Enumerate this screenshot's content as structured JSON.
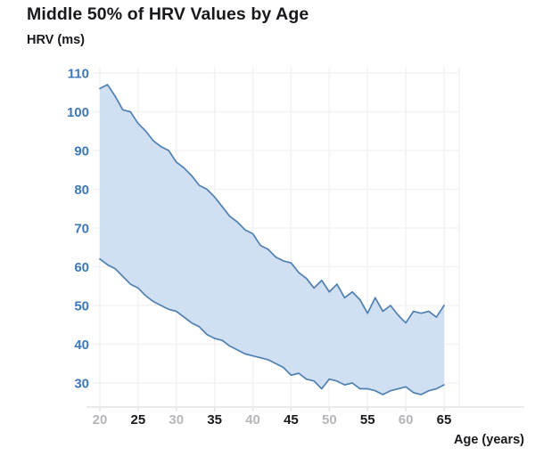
{
  "title": "Middle 50% of HRV Values by Age",
  "y_axis_title": "HRV (ms)",
  "x_axis_title": "Age (years)",
  "chart_data": {
    "type": "area",
    "description": "Shaded band between the 25th and 75th percentile of HRV (ms) by age; band narrows and declines with age with noisy bounds after ~age 46",
    "x": [
      20,
      21,
      22,
      23,
      24,
      25,
      26,
      27,
      28,
      29,
      30,
      31,
      32,
      33,
      34,
      35,
      36,
      37,
      38,
      39,
      40,
      41,
      42,
      43,
      44,
      45,
      46,
      47,
      48,
      49,
      50,
      51,
      52,
      53,
      54,
      55,
      56,
      57,
      58,
      59,
      60,
      61,
      62,
      63,
      64,
      65
    ],
    "series": [
      {
        "name": "upper bound (75th percentile)",
        "values": [
          106,
          107,
          104,
          100.5,
          100,
          97,
          95,
          92.5,
          91,
          90,
          87,
          85.5,
          83.5,
          81,
          80,
          78,
          75.5,
          73,
          71.5,
          69.5,
          68.5,
          65.5,
          64.5,
          62.5,
          61.5,
          61,
          58.5,
          57,
          54.5,
          56.5,
          53.5,
          55.5,
          52,
          53.5,
          51.5,
          48,
          52,
          48.5,
          50,
          47.5,
          45.5,
          48.5,
          48,
          48.5,
          47,
          50
        ]
      },
      {
        "name": "lower bound (25th percentile)",
        "values": [
          62,
          60.5,
          59.5,
          57.5,
          55.5,
          54.5,
          52.5,
          51,
          50,
          49,
          48.5,
          47,
          45.5,
          44.5,
          42.5,
          41.5,
          41,
          39.5,
          38.5,
          37.5,
          37,
          36.5,
          36,
          35,
          34,
          32,
          32.5,
          31,
          30.5,
          28.5,
          31,
          30.5,
          29.5,
          30,
          28.5,
          28.5,
          28,
          27,
          28,
          28.5,
          29,
          27.5,
          27,
          28,
          28.5,
          29.5
        ]
      }
    ],
    "title": "Middle 50% of HRV Values by Age",
    "xlabel": "Age (years)",
    "ylabel": "HRV (ms)",
    "x_ticks": [
      20,
      25,
      30,
      35,
      40,
      45,
      50,
      55,
      60,
      65
    ],
    "y_ticks": [
      30,
      40,
      50,
      60,
      70,
      80,
      90,
      100,
      110
    ],
    "xlim": [
      20,
      65
    ],
    "ylim": [
      30,
      110
    ],
    "grid": true,
    "legend_position": "none"
  },
  "colors": {
    "band_fill": "#c9dbf0",
    "band_stroke": "#4f80b2",
    "y_tick_label": "#3d78ba",
    "x_tick_label_muted": "#b4b6ba",
    "x_tick_label_strong": "#17191c",
    "gridline": "#f2f3f4",
    "axis_line": "#e3e4e6",
    "title_text": "#17191c"
  }
}
